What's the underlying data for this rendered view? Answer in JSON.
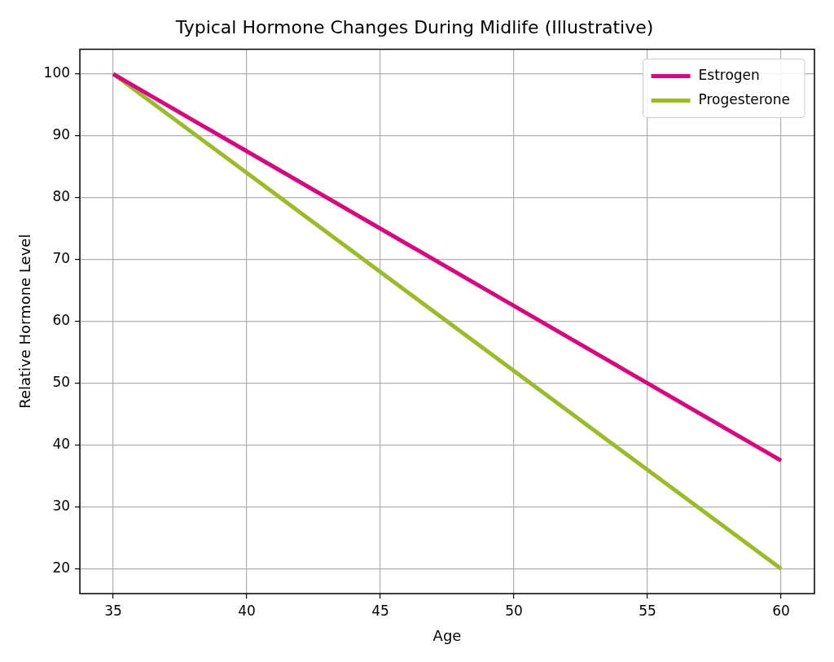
{
  "chart_data": {
    "type": "line",
    "title": "Typical Hormone Changes During Midlife (Illustrative)",
    "xlabel": "Age",
    "ylabel": "Relative Hormone Level",
    "x": [
      35,
      40,
      45,
      50,
      55,
      60
    ],
    "series": [
      {
        "name": "Estrogen",
        "color": "#d6087f",
        "values": [
          100,
          87.5,
          75,
          62.5,
          50,
          37.5
        ]
      },
      {
        "name": "Progesterone",
        "color": "#9bbb2a",
        "values": [
          100,
          84,
          68,
          52,
          36,
          20
        ]
      }
    ],
    "xlim": [
      33.75,
      61.25
    ],
    "xticks": [
      35,
      40,
      45,
      50,
      55,
      60
    ],
    "ylim": [
      16,
      104
    ],
    "yticks": [
      20,
      30,
      40,
      50,
      60,
      70,
      80,
      90,
      100
    ],
    "grid": true,
    "legend": "top right",
    "marker": "none",
    "line_style": "solid"
  }
}
